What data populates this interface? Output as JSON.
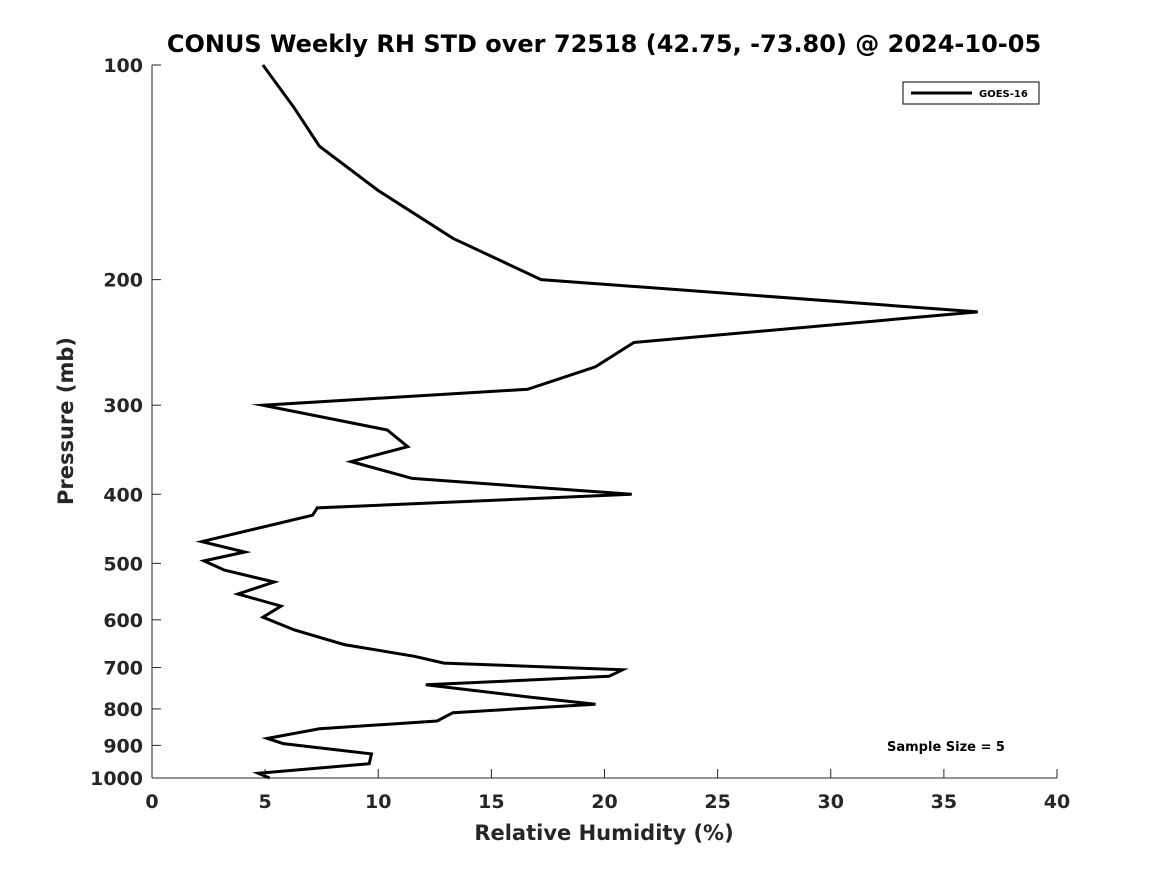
{
  "chart_data": {
    "type": "line",
    "title": "CONUS Weekly RH STD over 72518 (42.75, -73.80) @ 2024-10-05",
    "xlabel": "Relative Humidity (%)",
    "ylabel": "Pressure (mb)",
    "xlim": [
      0,
      40
    ],
    "ylim": [
      100,
      1000
    ],
    "yscale": "log",
    "yinverted": true,
    "x_ticks": [
      0,
      5,
      10,
      15,
      20,
      25,
      30,
      35,
      40
    ],
    "x_tick_labels": [
      "0",
      "5",
      "10",
      "15",
      "20",
      "25",
      "30",
      "35",
      "40"
    ],
    "y_ticks": [
      100,
      200,
      300,
      400,
      500,
      600,
      700,
      800,
      900,
      1000
    ],
    "y_tick_labels": [
      "100",
      "200",
      "300",
      "400",
      "500",
      "600",
      "700",
      "800",
      "900",
      "1000"
    ],
    "grid": false,
    "legend_position": "top-right",
    "line_color": "#000000",
    "annotation": "Sample Size = 5",
    "series": [
      {
        "name": "GOES-16",
        "x": [
          4.9,
          6.3,
          7.4,
          10.0,
          13.3,
          17.2,
          36.5,
          21.3,
          19.6,
          16.6,
          4.9,
          10.4,
          11.3,
          8.8,
          11.5,
          21.2,
          7.3,
          7.1,
          2.2,
          4.1,
          2.3,
          3.2,
          5.4,
          3.8,
          5.7,
          4.9,
          6.3,
          8.5,
          11.6,
          12.9,
          20.8,
          20.2,
          12.1,
          16.7,
          19.6,
          13.3,
          12.6,
          7.4,
          5.1,
          5.8,
          9.7,
          9.6,
          4.7,
          5.2
        ],
        "y": [
          100,
          115,
          130,
          150,
          175,
          200,
          222,
          245,
          265,
          285,
          300,
          325,
          343,
          360,
          380,
          400,
          418,
          428,
          466,
          482,
          496,
          511,
          531,
          552,
          574,
          595,
          620,
          650,
          675,
          690,
          705,
          720,
          740,
          770,
          788,
          810,
          832,
          853,
          880,
          895,
          925,
          955,
          985,
          1000
        ]
      }
    ]
  }
}
